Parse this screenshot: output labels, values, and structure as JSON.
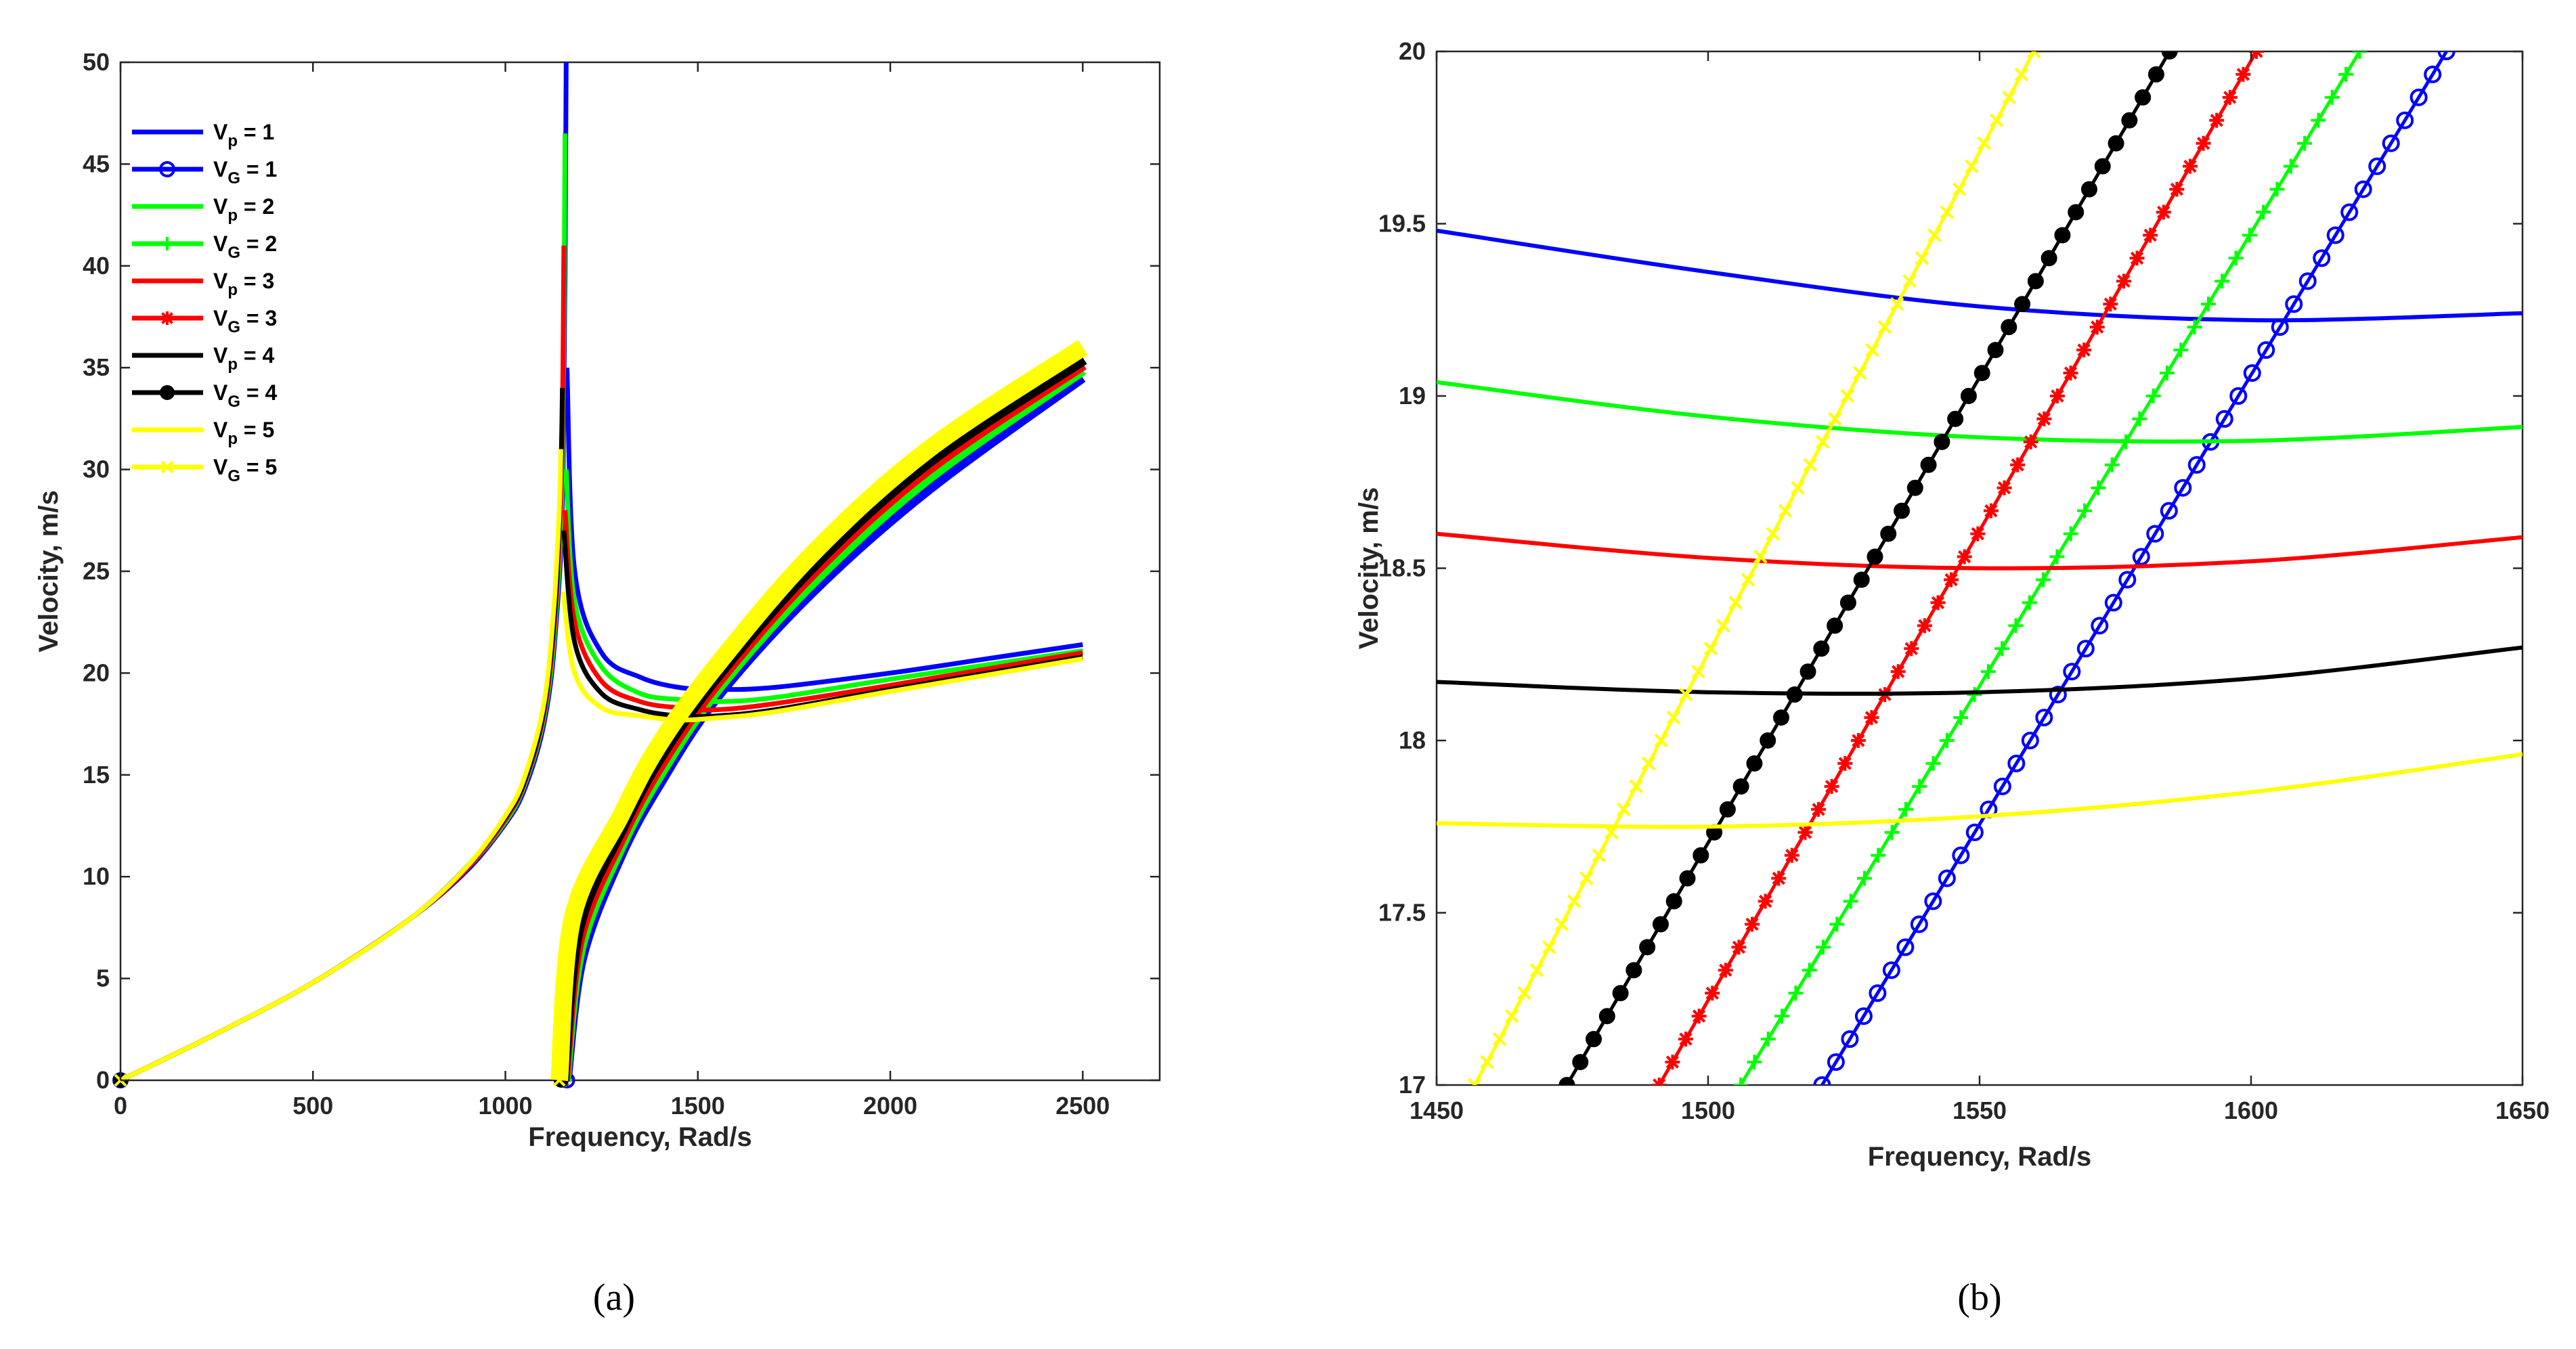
{
  "colors": {
    "m1": "#0000ff",
    "m2": "#00ff00",
    "m3": "#ff0000",
    "m4": "#000000",
    "m5": "#ffff00"
  },
  "panel_labels": {
    "a": "(a)",
    "b": "(b)"
  },
  "chart_data": [
    {
      "type": "line",
      "panel": "(a)",
      "xlabel": "Frequency, Rad/s",
      "ylabel": "Velocity, m/s",
      "xlim": [
        0,
        2700
      ],
      "ylim": [
        0,
        50
      ],
      "x_ticks": [
        0,
        500,
        1000,
        1500,
        2000,
        2500
      ],
      "y_ticks": [
        0,
        5,
        10,
        15,
        20,
        25,
        30,
        35,
        40,
        45,
        50
      ],
      "grid": false,
      "legend_position": "top-left",
      "legend": [
        {
          "label": "V",
          "sub": "p",
          "rest": " = 1",
          "color": "m1",
          "marker": "none"
        },
        {
          "label": "V",
          "sub": "G",
          "rest": " = 1",
          "color": "m1",
          "marker": "circle"
        },
        {
          "label": "V",
          "sub": "p",
          "rest": " = 2",
          "color": "m2",
          "marker": "none"
        },
        {
          "label": "V",
          "sub": "G",
          "rest": " = 2",
          "color": "m2",
          "marker": "plus"
        },
        {
          "label": "V",
          "sub": "p",
          "rest": " = 3",
          "color": "m3",
          "marker": "none"
        },
        {
          "label": "V",
          "sub": "G",
          "rest": " = 3",
          "color": "m3",
          "marker": "asterisk"
        },
        {
          "label": "V",
          "sub": "p",
          "rest": " = 4",
          "color": "m4",
          "marker": "none"
        },
        {
          "label": "V",
          "sub": "G",
          "rest": " = 4",
          "color": "m4",
          "marker": "filled-circle"
        },
        {
          "label": "V",
          "sub": "p",
          "rest": " = 5",
          "color": "m5",
          "marker": "none"
        },
        {
          "label": "V",
          "sub": "G",
          "rest": " = 5",
          "color": "m5",
          "marker": "x"
        }
      ],
      "series": [
        {
          "color": "m1",
          "lower_branch": [
            [
              0,
              0
            ],
            [
              250,
              2.3
            ],
            [
              500,
              4.8
            ],
            [
              750,
              7.9
            ],
            [
              900,
              10.3
            ],
            [
              1000,
              12.6
            ],
            [
              1050,
              14.3
            ],
            [
              1100,
              17.5
            ],
            [
              1130,
              22
            ],
            [
              1150,
              30
            ],
            [
              1158,
              50
            ]
          ],
          "upper_phase": [
            [
              1160,
              35
            ],
            [
              1180,
              25
            ],
            [
              1250,
              21
            ],
            [
              1350,
              19.8
            ],
            [
              1450,
              19.3
            ],
            [
              1550,
              19.2
            ],
            [
              1700,
              19.3
            ],
            [
              2000,
              20
            ],
            [
              2250,
              20.7
            ],
            [
              2500,
              21.4
            ]
          ],
          "upper_group": [
            [
              1160,
              0
            ],
            [
              1200,
              6
            ],
            [
              1300,
              11
            ],
            [
              1400,
              14.5
            ],
            [
              1550,
              18.8
            ],
            [
              1800,
              24
            ],
            [
              2100,
              29
            ],
            [
              2500,
              34.5
            ]
          ]
        },
        {
          "color": "m2",
          "lower_branch": [
            [
              0,
              0
            ],
            [
              250,
              2.3
            ],
            [
              500,
              4.8
            ],
            [
              750,
              7.9
            ],
            [
              900,
              10.4
            ],
            [
              1000,
              12.7
            ],
            [
              1050,
              14.5
            ],
            [
              1100,
              17.8
            ],
            [
              1130,
              22.5
            ],
            [
              1148,
              30
            ],
            [
              1155,
              46.5
            ]
          ],
          "upper_phase": [
            [
              1158,
              30
            ],
            [
              1180,
              23.5
            ],
            [
              1250,
              20.3
            ],
            [
              1350,
              19
            ],
            [
              1450,
              18.7
            ],
            [
              1550,
              18.6
            ],
            [
              1700,
              18.8
            ],
            [
              2000,
              19.7
            ],
            [
              2250,
              20.4
            ],
            [
              2500,
              21.1
            ]
          ],
          "upper_group": [
            [
              1155,
              0
            ],
            [
              1195,
              6.5
            ],
            [
              1300,
              11.5
            ],
            [
              1400,
              15
            ],
            [
              1550,
              19.2
            ],
            [
              1800,
              24.5
            ],
            [
              2100,
              29.6
            ],
            [
              2500,
              34.9
            ]
          ]
        },
        {
          "color": "m3",
          "lower_branch": [
            [
              0,
              0
            ],
            [
              250,
              2.3
            ],
            [
              500,
              4.8
            ],
            [
              750,
              7.9
            ],
            [
              900,
              10.4
            ],
            [
              1000,
              12.8
            ],
            [
              1050,
              14.6
            ],
            [
              1100,
              18
            ],
            [
              1130,
              23
            ],
            [
              1146,
              30
            ],
            [
              1152,
              41
            ]
          ],
          "upper_phase": [
            [
              1155,
              28
            ],
            [
              1180,
              22.5
            ],
            [
              1250,
              19.6
            ],
            [
              1350,
              18.6
            ],
            [
              1450,
              18.3
            ],
            [
              1550,
              18.2
            ],
            [
              1700,
              18.5
            ],
            [
              2000,
              19.4
            ],
            [
              2250,
              20.2
            ],
            [
              2500,
              21
            ]
          ],
          "upper_group": [
            [
              1150,
              0
            ],
            [
              1190,
              7
            ],
            [
              1300,
              12
            ],
            [
              1400,
              15.5
            ],
            [
              1550,
              19.6
            ],
            [
              1800,
              25
            ],
            [
              2100,
              30.1
            ],
            [
              2500,
              35.2
            ]
          ]
        },
        {
          "color": "m4",
          "lower_branch": [
            [
              0,
              0
            ],
            [
              250,
              2.3
            ],
            [
              500,
              4.8
            ],
            [
              750,
              7.9
            ],
            [
              900,
              10.5
            ],
            [
              1000,
              12.9
            ],
            [
              1050,
              14.7
            ],
            [
              1100,
              18.2
            ],
            [
              1130,
              23.5
            ],
            [
              1144,
              30
            ],
            [
              1148,
              34
            ]
          ],
          "upper_phase": [
            [
              1152,
              27
            ],
            [
              1180,
              21.5
            ],
            [
              1250,
              19
            ],
            [
              1350,
              18.2
            ],
            [
              1450,
              17.9
            ],
            [
              1550,
              17.9
            ],
            [
              1700,
              18.2
            ],
            [
              2000,
              19.2
            ],
            [
              2250,
              20
            ],
            [
              2500,
              20.8
            ]
          ],
          "upper_group": [
            [
              1145,
              0
            ],
            [
              1185,
              7.5
            ],
            [
              1300,
              12.5
            ],
            [
              1400,
              16
            ],
            [
              1550,
              20
            ],
            [
              1800,
              25.4
            ],
            [
              2100,
              30.5
            ],
            [
              2500,
              35.5
            ]
          ]
        },
        {
          "color": "m5",
          "lower_branch": [
            [
              0,
              0
            ],
            [
              250,
              2.3
            ],
            [
              500,
              4.8
            ],
            [
              750,
              7.9
            ],
            [
              900,
              10.5
            ],
            [
              1000,
              13
            ],
            [
              1050,
              14.9
            ],
            [
              1100,
              18.5
            ],
            [
              1125,
              23
            ],
            [
              1140,
              28
            ],
            [
              1144,
              31
            ]
          ],
          "upper_phase": [
            [
              1150,
              24
            ],
            [
              1180,
              20
            ],
            [
              1250,
              18.3
            ],
            [
              1350,
              17.9
            ],
            [
              1450,
              17.7
            ],
            [
              1550,
              17.8
            ],
            [
              1700,
              18.1
            ],
            [
              2000,
              19.1
            ],
            [
              2250,
              19.9
            ],
            [
              2500,
              20.7
            ]
          ],
          "upper_group": [
            [
              1140,
              0
            ],
            [
              1175,
              8
            ],
            [
              1300,
              13
            ],
            [
              1400,
              16.5
            ],
            [
              1550,
              20.4
            ],
            [
              1800,
              25.9
            ],
            [
              2100,
              31
            ],
            [
              2500,
              36
            ]
          ]
        }
      ]
    },
    {
      "type": "line",
      "panel": "(b)",
      "xlabel": "Frequency, Rad/s",
      "ylabel": "Velocity, m/s",
      "xlim": [
        1450,
        1650
      ],
      "ylim": [
        17,
        20
      ],
      "x_ticks": [
        1450,
        1500,
        1550,
        1600,
        1650
      ],
      "y_ticks": [
        17,
        17.5,
        18,
        18.5,
        19,
        19.5,
        20
      ],
      "grid": false,
      "series": [
        {
          "color": "m1",
          "phase": [
            [
              1450,
              19.48
            ],
            [
              1500,
              19.36
            ],
            [
              1550,
              19.26
            ],
            [
              1600,
              19.22
            ],
            [
              1650,
              19.24
            ]
          ],
          "group": [
            [
              1521,
              17
            ],
            [
              1636,
              20
            ]
          ]
        },
        {
          "color": "m2",
          "phase": [
            [
              1450,
              19.04
            ],
            [
              1500,
              18.94
            ],
            [
              1550,
              18.88
            ],
            [
              1600,
              18.87
            ],
            [
              1650,
              18.91
            ]
          ],
          "group": [
            [
              1506,
              17
            ],
            [
              1620,
              20
            ]
          ]
        },
        {
          "color": "m3",
          "phase": [
            [
              1450,
              18.6
            ],
            [
              1500,
              18.53
            ],
            [
              1550,
              18.5
            ],
            [
              1600,
              18.52
            ],
            [
              1650,
              18.59
            ]
          ],
          "group": [
            [
              1491,
              17
            ],
            [
              1601,
              20
            ]
          ]
        },
        {
          "color": "m4",
          "phase": [
            [
              1450,
              18.17
            ],
            [
              1500,
              18.14
            ],
            [
              1550,
              18.14
            ],
            [
              1600,
              18.18
            ],
            [
              1650,
              18.27
            ]
          ],
          "group": [
            [
              1474,
              17
            ],
            [
              1585,
              20
            ]
          ]
        },
        {
          "color": "m5",
          "phase": [
            [
              1450,
              17.76
            ],
            [
              1500,
              17.75
            ],
            [
              1550,
              17.78
            ],
            [
              1600,
              17.85
            ],
            [
              1650,
              17.96
            ]
          ],
          "group": [
            [
              1457,
              17
            ],
            [
              1560,
              20
            ]
          ]
        }
      ]
    }
  ]
}
